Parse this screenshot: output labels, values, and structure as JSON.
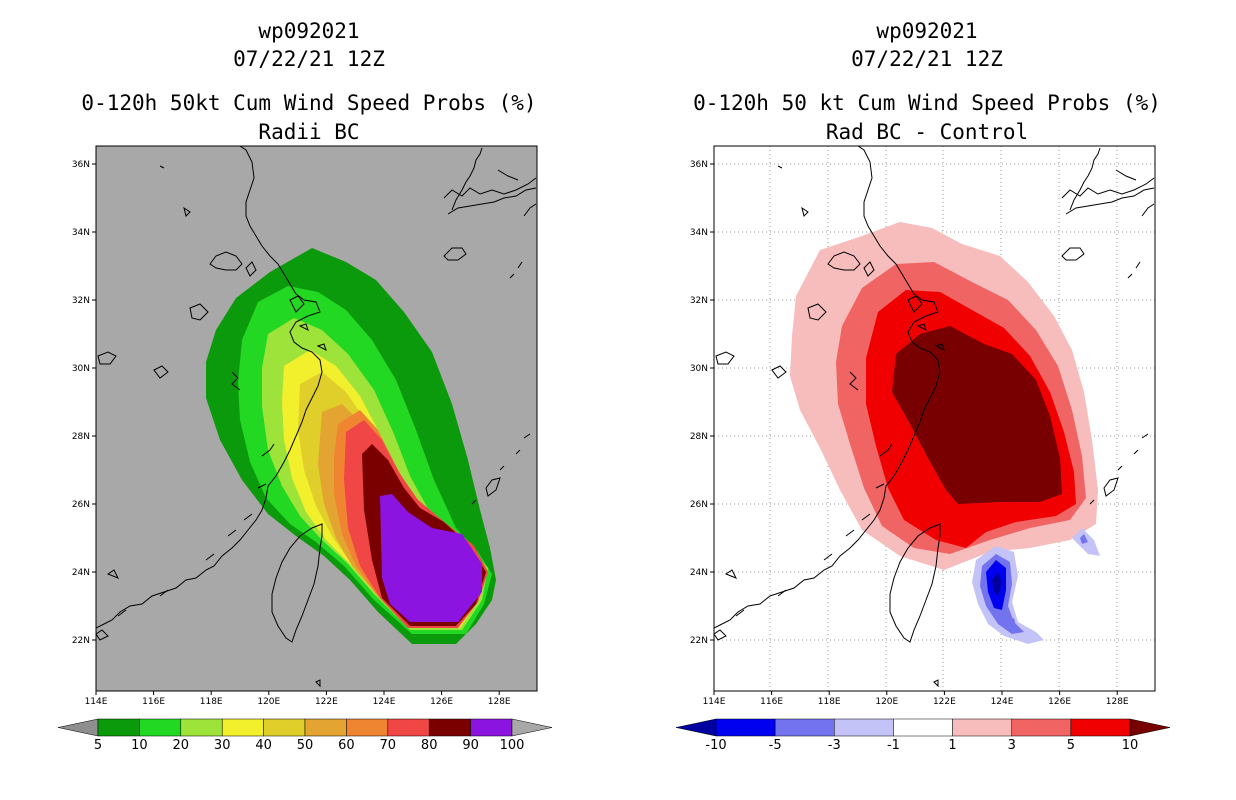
{
  "panels": [
    {
      "id": "left",
      "storm": "wp092021",
      "date": "07/22/21 12Z",
      "title": "0-120h 50kt Cum Wind Speed Probs (%)",
      "subtitle": "Radii BC",
      "background": "#a8a8a8",
      "colorbar": {
        "labels": [
          "5",
          "10",
          "20",
          "30",
          "40",
          "50",
          "60",
          "70",
          "80",
          "90",
          "100"
        ],
        "colors": [
          "#8e8e8e",
          "#0b9a0b",
          "#23d823",
          "#9ee33a",
          "#f2f02c",
          "#e0cf2b",
          "#e3a432",
          "#ef8431",
          "#f04646",
          "#7a0000",
          "#8b14e0",
          "#a8a8a8"
        ]
      }
    },
    {
      "id": "right",
      "storm": "wp092021",
      "date": "07/22/21 12Z",
      "title": "0-120h 50 kt Cum Wind Speed Probs (%)",
      "subtitle": "Rad BC - Control",
      "background": "#ffffff",
      "colorbar": {
        "labels": [
          "-10",
          "-5",
          "-3",
          "-1",
          "1",
          "3",
          "5",
          "10"
        ],
        "colors": [
          "#0000a0",
          "#0000f0",
          "#7373f0",
          "#c3c3f8",
          "#ffffff",
          "#f7bcbc",
          "#f06464",
          "#f00000",
          "#780000"
        ]
      }
    }
  ],
  "axes": {
    "lon_labels": [
      "114E",
      "116E",
      "118E",
      "120E",
      "122E",
      "124E",
      "126E",
      "128E"
    ],
    "lat_labels": [
      "36N",
      "34N",
      "32N",
      "30N",
      "28N",
      "26N",
      "24N",
      "22N"
    ]
  },
  "map_data": {
    "lon_range": [
      114,
      129.2
    ],
    "lat_range": [
      20.6,
      37.2
    ],
    "probability_contour_levels": [
      5,
      10,
      20,
      30,
      40,
      50,
      60,
      70,
      80,
      90
    ],
    "difference_contour_levels": [
      -10,
      -5,
      -3,
      -1,
      1,
      3,
      5,
      10
    ]
  }
}
